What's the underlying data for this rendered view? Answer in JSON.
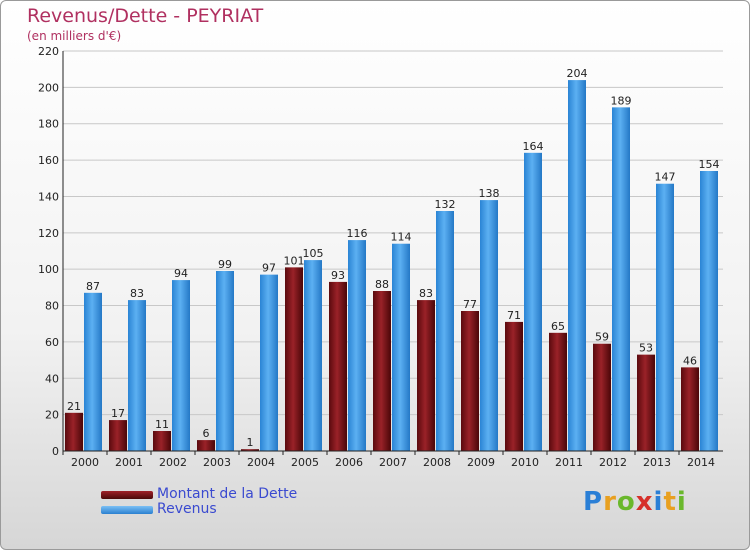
{
  "header": {
    "title": "Revenus/Dette - PEYRIAT",
    "subtitle": "(en milliers d'€)"
  },
  "chart_data": {
    "type": "bar",
    "title": "Revenus/Dette - PEYRIAT",
    "subtitle": "(en milliers d'€)",
    "xlabel": "",
    "ylabel": "",
    "categories": [
      "2000",
      "2001",
      "2002",
      "2003",
      "2004",
      "2005",
      "2006",
      "2007",
      "2008",
      "2009",
      "2010",
      "2011",
      "2012",
      "2013",
      "2014"
    ],
    "series": [
      {
        "name": "Montant de la Dette",
        "values": [
          21,
          17,
          11,
          6,
          1,
          101,
          93,
          88,
          83,
          77,
          71,
          65,
          59,
          53,
          46
        ],
        "color": "#7a1216"
      },
      {
        "name": "Revenus",
        "values": [
          87,
          83,
          94,
          99,
          97,
          105,
          116,
          114,
          132,
          138,
          164,
          204,
          189,
          147,
          154
        ],
        "color": "#3d9be9"
      }
    ],
    "ylim": [
      0,
      220
    ],
    "yticks": [
      0,
      20,
      40,
      60,
      80,
      100,
      120,
      140,
      160,
      180,
      200,
      220
    ],
    "grid": true,
    "legend": "bottom-left"
  },
  "legend": {
    "items": [
      {
        "label": "Montant de la Dette",
        "color": "#7a1216"
      },
      {
        "label": "Revenus",
        "color": "#3d9be9"
      }
    ]
  },
  "brand": {
    "letters": [
      "P",
      "r",
      "o",
      "x",
      "i",
      "t",
      "i"
    ],
    "colors": [
      "#2a7fd6",
      "#e8a020",
      "#6ab82c",
      "#d6302a",
      "#2a7fd6",
      "#e8a020",
      "#6ab82c"
    ]
  }
}
